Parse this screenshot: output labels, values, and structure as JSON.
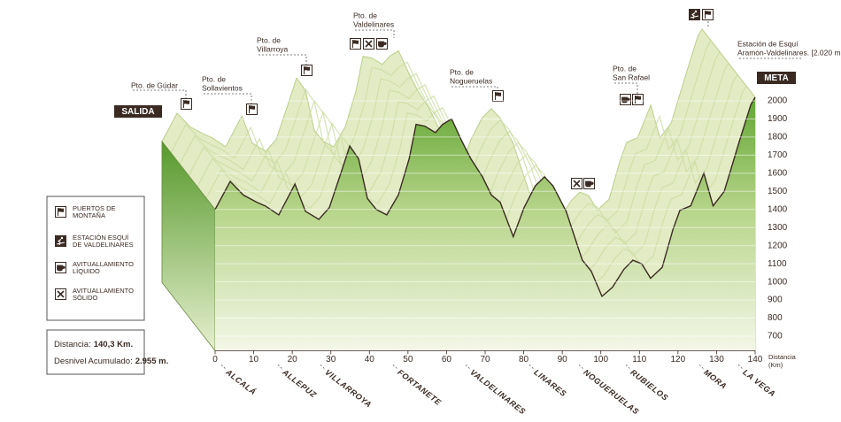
{
  "chart_data": {
    "type": "area",
    "start_label": "SALIDA",
    "end_label": "META",
    "x": [
      0,
      3.9,
      7.3,
      10.8,
      13,
      16.5,
      20.7,
      23.4,
      26.9,
      29.6,
      32.6,
      34.9,
      37.2,
      39.5,
      41.8,
      44.5,
      47.5,
      50.3,
      52.1,
      54.4,
      57.1,
      59,
      61.3,
      64,
      66.3,
      69.3,
      71.6,
      73.9,
      77.3,
      80.1,
      83,
      85.4,
      87.6,
      91,
      95.2,
      97.5,
      100.3,
      103,
      106,
      108.3,
      110.6,
      112.9,
      115.9,
      118.7,
      120.5,
      123.3,
      126.7,
      129.1,
      132,
      135.9,
      138.9,
      140
    ],
    "values": [
      1400,
      1555,
      1480,
      1440,
      1420,
      1370,
      1540,
      1390,
      1345,
      1410,
      1600,
      1750,
      1680,
      1460,
      1400,
      1370,
      1480,
      1680,
      1870,
      1860,
      1825,
      1870,
      1900,
      1775,
      1680,
      1580,
      1480,
      1440,
      1250,
      1410,
      1530,
      1580,
      1530,
      1390,
      1120,
      1060,
      920,
      970,
      1070,
      1120,
      1100,
      1020,
      1080,
      1290,
      1395,
      1420,
      1600,
      1420,
      1500,
      1775,
      1980,
      2020
    ],
    "color": "#6fae3c",
    "xlim": [
      0,
      140
    ],
    "xticks": [
      0,
      10,
      20,
      30,
      40,
      50,
      60,
      70,
      80,
      90,
      100,
      110,
      120,
      130,
      140
    ],
    "ylim": [
      620,
      2080
    ],
    "yticks": [
      700,
      800,
      900,
      1000,
      1100,
      1200,
      1300,
      1400,
      1500,
      1600,
      1700,
      1800,
      1900,
      2000
    ],
    "x_axis_label": [
      "Distancia",
      "(Km)"
    ],
    "towns": [
      "ALCALÁ",
      "ALLEPUZ",
      "VILLARROYA",
      "FORTANETE",
      "VALDELINARES",
      "LINARES",
      "NOGUERUELAS",
      "RUBIELOS",
      "MORA",
      "LA VEGA"
    ],
    "annotations": [
      {
        "lines": [
          "Pto. de Gúdar"
        ]
      },
      {
        "lines": [
          "Pto. de",
          "Sollavientos"
        ]
      },
      {
        "lines": [
          "Pto. de",
          "Villarroya"
        ]
      },
      {
        "lines": [
          "Pto. de",
          "Valdelinares"
        ]
      },
      {
        "lines": [
          "Pto. de",
          "Nogueruelas"
        ]
      },
      {
        "lines": [
          "Pto. de",
          "San Rafael"
        ]
      },
      {
        "lines": [
          "Estación de Esquí",
          "Aramón-Valdelinares. [2.020 m.]"
        ]
      }
    ],
    "legend": [
      {
        "lines": [
          "PUERTOS DE",
          "MONTAÑA"
        ]
      },
      {
        "lines": [
          "ESTACIÓN ESQUÍ",
          "DE VALDELINARES"
        ]
      },
      {
        "lines": [
          "AVITUALLAMIENTO",
          "LÍQUIDO"
        ]
      },
      {
        "lines": [
          "AVITUALLAMIENTO",
          "SÓLIDO"
        ]
      }
    ],
    "summary": [
      {
        "label": "Distancia:",
        "value": "140,3 Km."
      },
      {
        "label": "Desnivel Acumulado:",
        "value": "2.955 m."
      }
    ]
  }
}
